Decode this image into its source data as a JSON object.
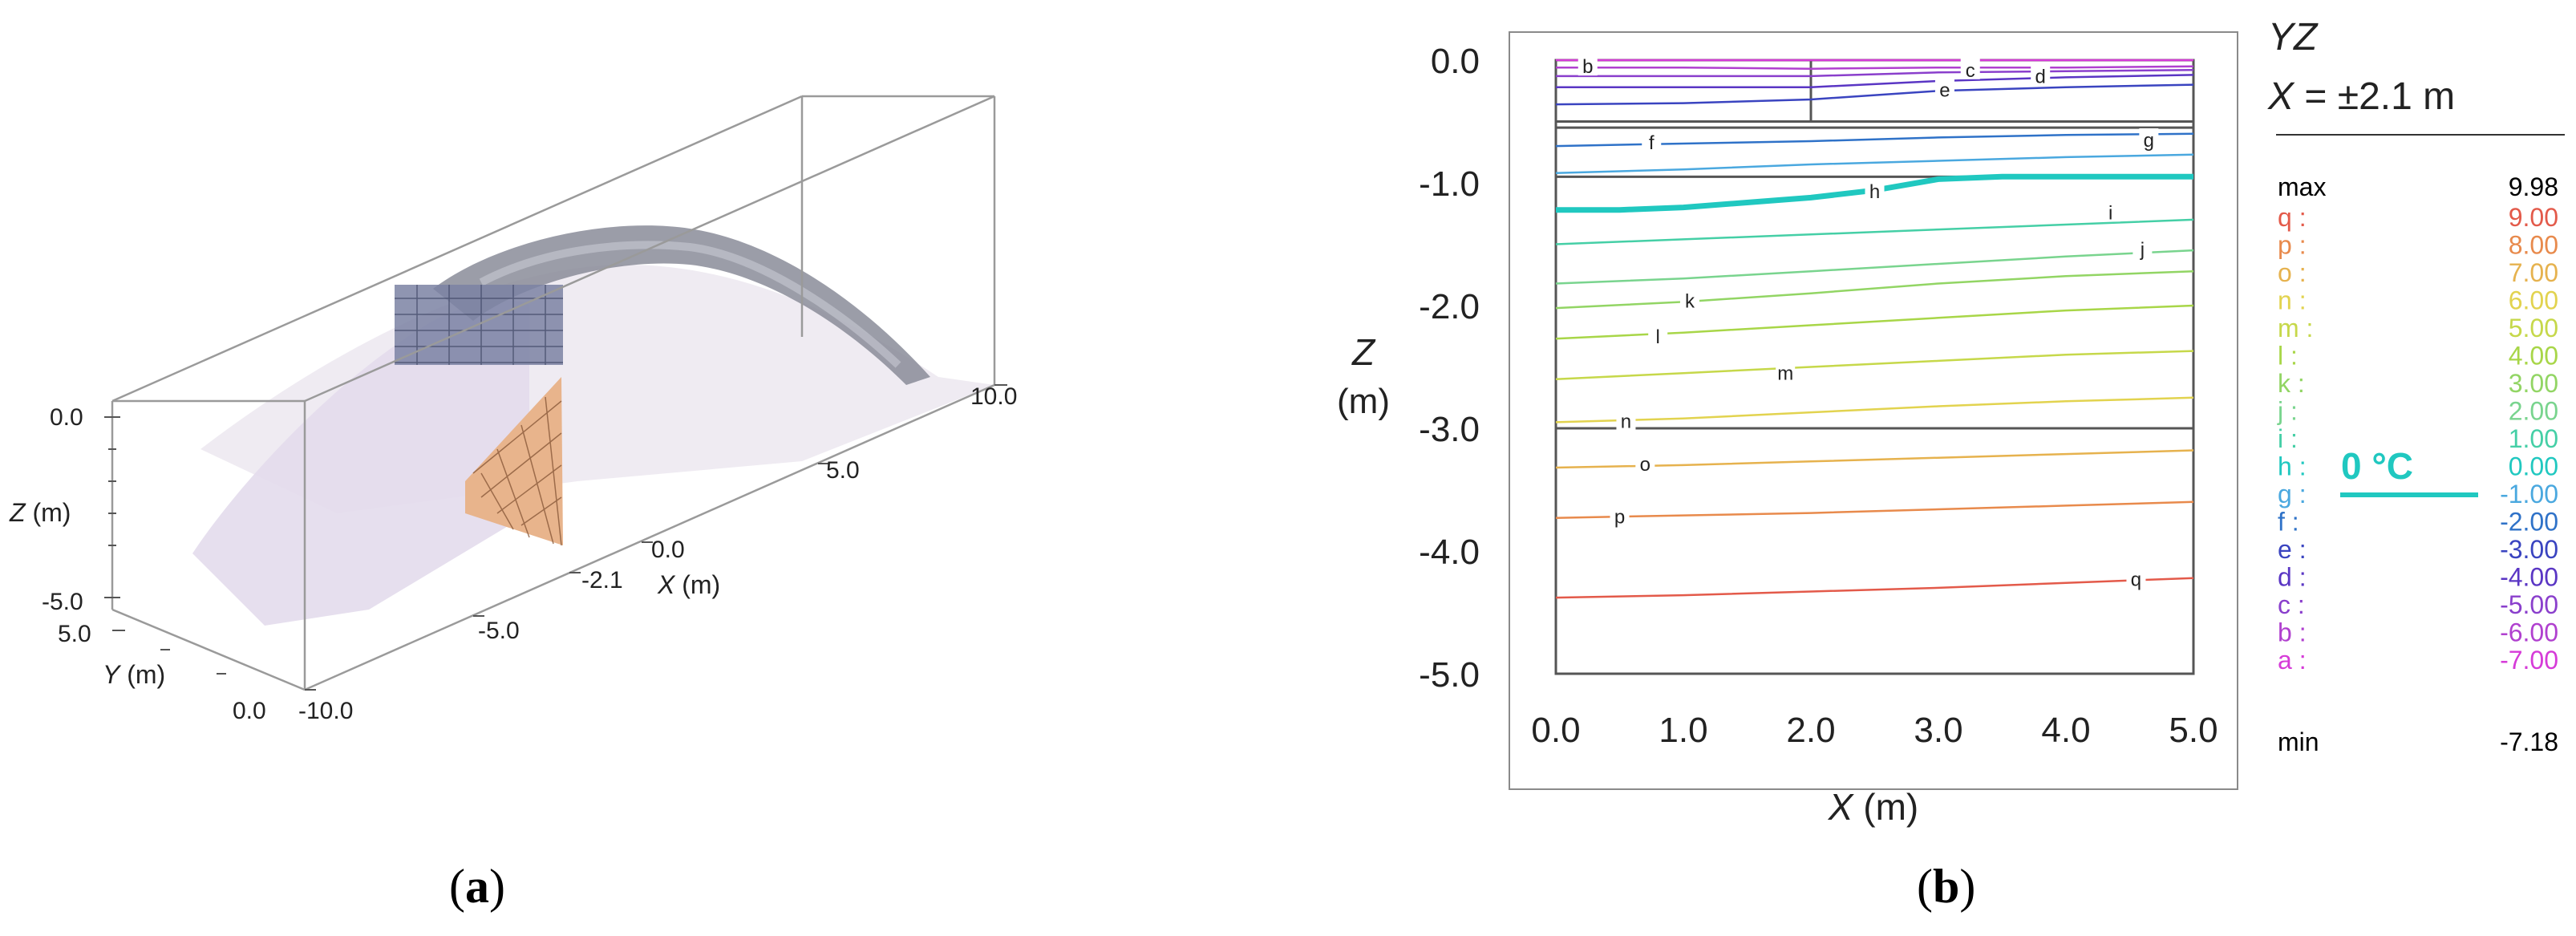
{
  "panel_a": {
    "caption_open": "(",
    "caption_letter": "a",
    "caption_close": ")",
    "ticks": {
      "z_top": "0.0",
      "z_bottom": "-5.0",
      "y_top": "5.0",
      "y_bottom": "0.0",
      "x_neg10": "-10.0",
      "x_neg5": "-5.0",
      "x_neg21": "-2.1",
      "x_0": "0.0",
      "x_5": "5.0",
      "x_10": "10.0"
    },
    "axis_labels": {
      "z_var": "Z",
      "z_unit": " (m)",
      "y_var": "Y",
      "y_unit": " (m)",
      "x_var": "X",
      "x_unit": " (m)"
    }
  },
  "panel_b": {
    "caption_open": "(",
    "caption_letter": "b",
    "caption_close": ")",
    "title_line1": "YZ",
    "title_var": "X",
    "title_rest": " = ±2.1 m",
    "zero_label": "0 °C",
    "xlabel_var": "X",
    "xlabel_unit": " (m)",
    "ylabel_var": "Z",
    "ylabel_unit": "(m)",
    "legend_max_label": "max",
    "legend_max_value": "9.98",
    "legend_min_label": "min",
    "legend_min_value": "-7.18"
  },
  "chart_data": [
    {
      "type": "line",
      "panel": "b",
      "xlim": [
        0,
        5
      ],
      "ylim": [
        -5,
        0
      ],
      "x_ticks": [
        "0.0",
        "1.0",
        "2.0",
        "3.0",
        "4.0",
        "5.0"
      ],
      "y_ticks": [
        "0.0",
        "-1.0",
        "-2.0",
        "-3.0",
        "-4.0",
        "-5.0"
      ],
      "layer_boundaries_z": [
        -0.5,
        -0.55,
        -0.95,
        -3.0
      ],
      "grid": false,
      "legend_placement": "right",
      "series": [
        {
          "name": "a",
          "value": "-7.00",
          "color": "#d63bd8",
          "x": [
            0,
            5
          ],
          "y": [
            0.0,
            0.0
          ],
          "label_at": null
        },
        {
          "name": "b",
          "value": "-6.00",
          "color": "#b040cf",
          "x": [
            0,
            1,
            2,
            3,
            4,
            5
          ],
          "y": [
            -0.06,
            -0.06,
            -0.07,
            -0.06,
            -0.06,
            -0.05
          ],
          "label_at": [
            0.25,
            -0.06
          ]
        },
        {
          "name": "c",
          "value": "-5.00",
          "color": "#8a3fcc",
          "x": [
            0,
            1,
            2,
            3,
            4,
            5
          ],
          "y": [
            -0.13,
            -0.13,
            -0.13,
            -0.1,
            -0.09,
            -0.08
          ],
          "label_at": [
            3.25,
            -0.09
          ]
        },
        {
          "name": "d",
          "value": "-4.00",
          "color": "#5a36c4",
          "x": [
            0,
            1,
            2,
            3,
            4,
            5
          ],
          "y": [
            -0.22,
            -0.22,
            -0.22,
            -0.17,
            -0.14,
            -0.12
          ],
          "label_at": [
            3.8,
            -0.14
          ]
        },
        {
          "name": "e",
          "value": "-3.00",
          "color": "#3a44c0",
          "x": [
            0,
            1,
            2,
            3,
            4,
            5
          ],
          "y": [
            -0.36,
            -0.35,
            -0.32,
            -0.25,
            -0.22,
            -0.2
          ],
          "label_at": [
            3.05,
            -0.25
          ]
        },
        {
          "name": "f",
          "value": "-2.00",
          "color": "#2f72c8",
          "x": [
            0,
            1,
            2,
            3,
            4,
            5
          ],
          "y": [
            -0.7,
            -0.68,
            -0.66,
            -0.63,
            -0.61,
            -0.6
          ],
          "label_at": [
            0.75,
            -0.68
          ]
        },
        {
          "name": "g",
          "value": "-1.00",
          "color": "#4aa8df",
          "x": [
            0,
            1,
            2,
            3,
            4,
            5
          ],
          "y": [
            -0.92,
            -0.89,
            -0.85,
            -0.82,
            -0.79,
            -0.77
          ],
          "label_at": [
            4.65,
            -0.66
          ]
        },
        {
          "name": "h",
          "value": "0.00",
          "color": "#20c8c0",
          "x": [
            0,
            0.5,
            1,
            1.5,
            2,
            2.5,
            3,
            3.5,
            4,
            5
          ],
          "y": [
            -1.22,
            -1.22,
            -1.2,
            -1.16,
            -1.12,
            -1.06,
            -0.97,
            -0.95,
            -0.95,
            -0.95
          ],
          "label_at": [
            2.5,
            -1.08
          ]
        },
        {
          "name": "i",
          "value": "1.00",
          "color": "#45cfa6",
          "x": [
            0,
            1,
            2,
            3,
            4,
            5
          ],
          "y": [
            -1.5,
            -1.46,
            -1.42,
            -1.38,
            -1.34,
            -1.3
          ],
          "label_at": [
            4.35,
            -1.25
          ]
        },
        {
          "name": "j",
          "value": "2.00",
          "color": "#79d48e",
          "x": [
            0,
            1,
            2,
            3,
            4,
            5
          ],
          "y": [
            -1.82,
            -1.78,
            -1.72,
            -1.66,
            -1.6,
            -1.55
          ],
          "label_at": [
            4.6,
            -1.55
          ]
        },
        {
          "name": "k",
          "value": "3.00",
          "color": "#92d564",
          "x": [
            0,
            1,
            2,
            3,
            4,
            5
          ],
          "y": [
            -2.02,
            -1.97,
            -1.9,
            -1.82,
            -1.76,
            -1.72
          ],
          "label_at": [
            1.05,
            -1.97
          ]
        },
        {
          "name": "l",
          "value": "4.00",
          "color": "#a8d648",
          "x": [
            0,
            1,
            2,
            3,
            4,
            5
          ],
          "y": [
            -2.27,
            -2.22,
            -2.16,
            -2.1,
            -2.04,
            -2.0
          ],
          "label_at": [
            0.8,
            -2.26
          ]
        },
        {
          "name": "m",
          "value": "5.00",
          "color": "#c6d84a",
          "x": [
            0,
            1,
            2,
            3,
            4,
            5
          ],
          "y": [
            -2.6,
            -2.55,
            -2.5,
            -2.45,
            -2.4,
            -2.37
          ],
          "label_at": [
            1.8,
            -2.56
          ]
        },
        {
          "name": "n",
          "value": "6.00",
          "color": "#e2d34f",
          "x": [
            0,
            1,
            2,
            3,
            4,
            5
          ],
          "y": [
            -2.95,
            -2.92,
            -2.87,
            -2.82,
            -2.78,
            -2.75
          ],
          "label_at": [
            0.55,
            -2.95
          ]
        },
        {
          "name": "o",
          "value": "7.00",
          "color": "#e6b24e",
          "x": [
            0,
            1,
            2,
            3,
            4,
            5
          ],
          "y": [
            -3.32,
            -3.3,
            -3.27,
            -3.24,
            -3.21,
            -3.18
          ],
          "label_at": [
            0.7,
            -3.3
          ]
        },
        {
          "name": "p",
          "value": "8.00",
          "color": "#e88a4c",
          "x": [
            0,
            1,
            2,
            3,
            4,
            5
          ],
          "y": [
            -3.73,
            -3.71,
            -3.69,
            -3.66,
            -3.63,
            -3.6
          ],
          "label_at": [
            0.5,
            -3.73
          ]
        },
        {
          "name": "q",
          "value": "9.00",
          "color": "#e35a4a",
          "x": [
            0,
            1,
            2,
            3,
            4,
            5
          ],
          "y": [
            -4.38,
            -4.36,
            -4.33,
            -4.3,
            -4.26,
            -4.22
          ],
          "label_at": [
            4.55,
            -4.24
          ]
        }
      ]
    }
  ]
}
